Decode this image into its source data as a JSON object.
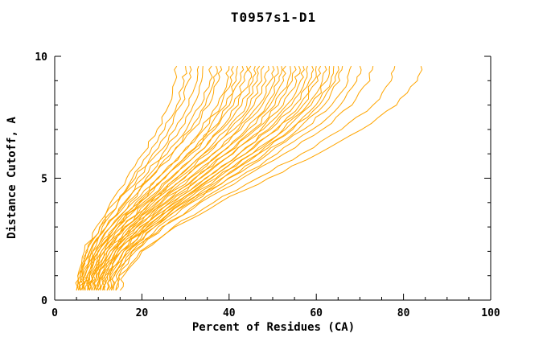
{
  "chart_data": {
    "type": "line",
    "title": "T0957s1-D1",
    "xlabel": "Percent of Residues (CA)",
    "ylabel": "Distance Cutoff, A",
    "xlim": [
      0,
      100
    ],
    "ylim": [
      0,
      10
    ],
    "x_ticks": [
      0,
      20,
      40,
      60,
      80,
      100
    ],
    "x_minor_step": 5,
    "y_ticks": [
      0,
      5,
      10
    ],
    "y_minor_step": 1,
    "grid": false,
    "legend": "none",
    "line_color": "#FFA500",
    "note": "Each series gives x (percent of residues) at the shared y_grid distance-cutoff values",
    "y_grid": [
      0.4,
      1,
      2,
      3,
      4,
      5,
      6,
      7,
      8,
      9,
      9.6
    ],
    "series": [
      {
        "x_at_y": [
          5,
          5.3,
          6.8,
          9.5,
          12.8,
          16.5,
          20.2,
          23.5,
          26.2,
          27.7,
          28
        ]
      },
      {
        "x_at_y": [
          5.5,
          5.8,
          7.5,
          10.3,
          13.8,
          17.8,
          21.7,
          25.2,
          28,
          29.7,
          30
        ]
      },
      {
        "x_at_y": [
          6,
          6.3,
          8,
          10.9,
          14.5,
          18.5,
          22.5,
          26.2,
          29,
          30.7,
          31
        ]
      },
      {
        "x_at_y": [
          5,
          5.3,
          7.2,
          10.4,
          14.5,
          19,
          23.5,
          27.6,
          30.8,
          32.7,
          33
        ]
      },
      {
        "x_at_y": [
          6.5,
          6.8,
          8.7,
          11.8,
          15.9,
          20.3,
          24.7,
          28.7,
          31.8,
          33.7,
          34
        ]
      },
      {
        "x_at_y": [
          6,
          6.4,
          8.4,
          11.8,
          16.2,
          21,
          25.8,
          30.2,
          33.6,
          35.6,
          36
        ]
      },
      {
        "x_at_y": [
          7,
          7.4,
          9.4,
          12.8,
          17.2,
          22,
          26.8,
          31.2,
          34.6,
          36.6,
          37
        ]
      },
      {
        "x_at_y": [
          5.5,
          5.9,
          8.1,
          11.8,
          16.6,
          21.8,
          27,
          31.7,
          35.4,
          37.6,
          38
        ]
      },
      {
        "x_at_y": [
          7.5,
          7.9,
          10.1,
          13.8,
          18.6,
          23.8,
          29,
          33.7,
          37.4,
          39.6,
          40
        ]
      },
      {
        "x_at_y": [
          6,
          6.4,
          8.8,
          12.8,
          17.9,
          23.5,
          29.1,
          34.2,
          38.2,
          40.6,
          41
        ]
      },
      {
        "x_at_y": [
          8,
          8.4,
          10.7,
          14.6,
          19.6,
          25,
          30.4,
          35.4,
          39.3,
          41.6,
          42
        ]
      },
      {
        "x_at_y": [
          7,
          7.4,
          9.9,
          14,
          19.2,
          25,
          30.8,
          36,
          40.1,
          42.6,
          43
        ]
      },
      {
        "x_at_y": [
          6.5,
          7,
          9.5,
          13.8,
          19.3,
          25.3,
          31.3,
          36.7,
          41,
          43.6,
          44
        ]
      },
      {
        "x_at_y": [
          8.5,
          8.9,
          11.4,
          15.6,
          20.9,
          26.8,
          32.6,
          37.9,
          42.1,
          44.6,
          45
        ]
      },
      {
        "x_at_y": [
          7,
          7.5,
          10.1,
          14.6,
          20.3,
          26.5,
          32.7,
          38.4,
          42.9,
          45.5,
          46
        ]
      },
      {
        "x_at_y": [
          9,
          9.5,
          12,
          16.4,
          21.9,
          28,
          34.1,
          39.6,
          44,
          46.5,
          47
        ]
      },
      {
        "x_at_y": [
          7.5,
          8,
          10.7,
          15.4,
          21.3,
          27.8,
          34.2,
          40.1,
          44.8,
          47.5,
          48
        ]
      },
      {
        "x_at_y": [
          8,
          8.5,
          11.3,
          16,
          21.9,
          28.5,
          35.1,
          41.1,
          45.7,
          48.5,
          49
        ]
      },
      {
        "x_at_y": [
          9.5,
          10,
          12.7,
          17.4,
          23.3,
          29.8,
          36.2,
          42.1,
          46.8,
          49.5,
          50
        ]
      },
      {
        "x_at_y": [
          8,
          8.5,
          11.4,
          16.3,
          22.6,
          29.5,
          36.4,
          42.7,
          47.6,
          50.5,
          51
        ]
      },
      {
        "x_at_y": [
          10,
          10.5,
          13.4,
          18.2,
          24.3,
          31,
          37.7,
          43.9,
          48.6,
          51.5,
          52
        ]
      },
      {
        "x_at_y": [
          8.5,
          9,
          12.1,
          17.1,
          23.6,
          30.8,
          37.9,
          44.4,
          49.4,
          52.5,
          53
        ]
      },
      {
        "x_at_y": [
          10.5,
          11,
          14,
          18.9,
          25.3,
          32.3,
          39.2,
          45.6,
          50.5,
          53.5,
          54
        ]
      },
      {
        "x_at_y": [
          9,
          9.6,
          12.7,
          17.9,
          24.6,
          32,
          39.4,
          46.1,
          51.3,
          54.5,
          55
        ]
      },
      {
        "x_at_y": [
          11,
          11.5,
          14.6,
          19.7,
          26.3,
          33.5,
          40.7,
          47.3,
          52.4,
          55.5,
          56
        ]
      },
      {
        "x_at_y": [
          9.5,
          10.1,
          13.3,
          18.7,
          25.7,
          33.3,
          40.9,
          47.8,
          53.2,
          56.4,
          57
        ]
      },
      {
        "x_at_y": [
          11.5,
          12.1,
          15.2,
          20.5,
          27.3,
          34.8,
          42.2,
          49,
          54.3,
          57.4,
          58
        ]
      },
      {
        "x_at_y": [
          10,
          10.6,
          13.9,
          19.5,
          26.7,
          34.5,
          42.3,
          49.5,
          55.1,
          58.4,
          59
        ]
      },
      {
        "x_at_y": [
          12,
          12.6,
          15.8,
          21.3,
          28.3,
          36,
          43.7,
          50.7,
          56.2,
          59.4,
          60
        ]
      },
      {
        "x_at_y": [
          10.5,
          11.1,
          14.5,
          20.3,
          27.7,
          35.8,
          43.8,
          51.2,
          57,
          60.4,
          61
        ]
      },
      {
        "x_at_y": [
          12.5,
          13.1,
          16.5,
          22.1,
          29.3,
          37.3,
          45.2,
          52.4,
          58,
          61.4,
          62
        ]
      },
      {
        "x_at_y": [
          11,
          11.6,
          15.2,
          21.1,
          28.7,
          37,
          45.3,
          52.9,
          58.8,
          62.4,
          63
        ]
      },
      {
        "x_at_y": [
          13,
          13.6,
          17.1,
          22.9,
          30.3,
          38.5,
          46.7,
          54.1,
          59.9,
          63.4,
          64
        ]
      },
      {
        "x_at_y": [
          11.5,
          12.1,
          15.8,
          21.9,
          29.7,
          38.3,
          46.8,
          54.6,
          60.7,
          64.4,
          65
        ]
      },
      {
        "x_at_y": [
          13.5,
          14.1,
          17.7,
          23.7,
          31.4,
          39.8,
          48.2,
          55.8,
          61.8,
          65.4,
          66
        ]
      },
      {
        "x_at_y": [
          12,
          12.7,
          16.5,
          22.9,
          31,
          40,
          49,
          57.1,
          63.5,
          67.3,
          68
        ]
      },
      {
        "x_at_y": [
          14,
          14.7,
          18.5,
          24.9,
          33,
          42,
          51,
          59.1,
          65.5,
          69.3,
          70
        ]
      },
      {
        "x_at_y": [
          13,
          13.7,
          17.8,
          24.6,
          33.4,
          43,
          52.6,
          61.4,
          68.2,
          72.3,
          73
        ]
      },
      {
        "x_at_y": [
          15,
          15.8,
          20,
          27.2,
          36.4,
          46.5,
          56.6,
          65.8,
          73,
          77.2,
          78
        ]
      },
      {
        "x_at_y": [
          14,
          14.8,
          19.6,
          27.6,
          37.8,
          49,
          60.4,
          70.4,
          78.4,
          83.2,
          84
        ]
      }
    ]
  }
}
